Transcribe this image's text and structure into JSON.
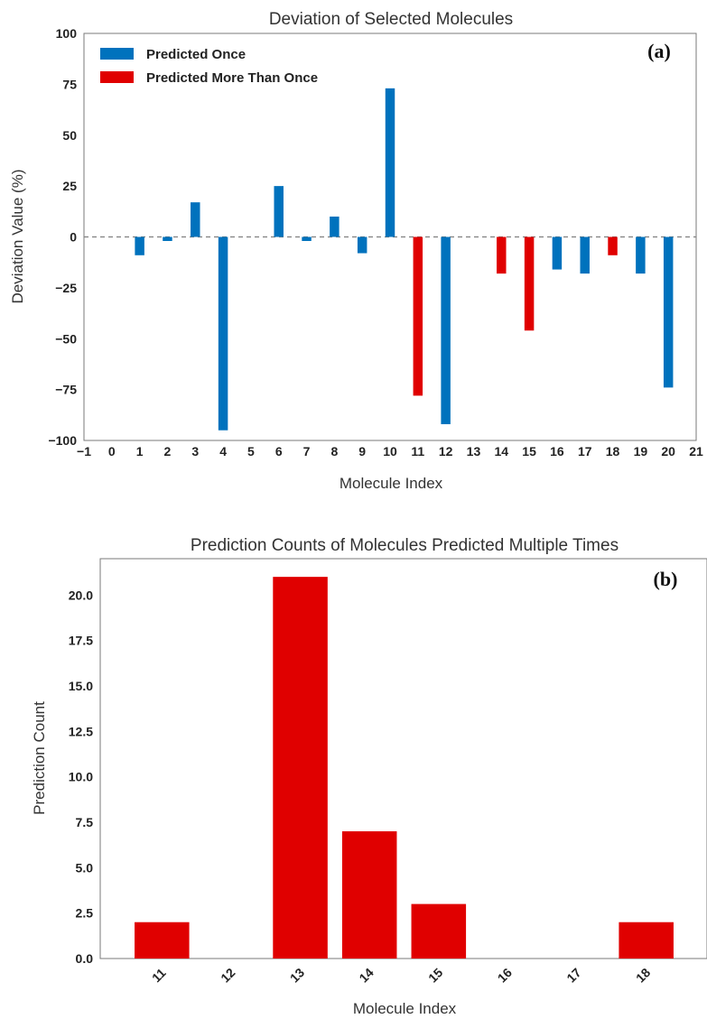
{
  "chart_data": [
    {
      "type": "bar",
      "panel_label": "(a)",
      "title": "Deviation of Selected Molecules",
      "xlabel": "Molecule Index",
      "ylabel": "Deviation Value (%)",
      "xlim": [
        -1,
        21
      ],
      "ylim": [
        -100,
        100
      ],
      "xticks": [
        "−1",
        "0",
        "1",
        "2",
        "3",
        "4",
        "5",
        "6",
        "7",
        "8",
        "9",
        "10",
        "11",
        "12",
        "13",
        "14",
        "15",
        "16",
        "17",
        "18",
        "19",
        "20",
        "21"
      ],
      "yticks": [
        "100",
        "75",
        "50",
        "25",
        "0",
        "−25",
        "−50",
        "−75",
        "−100"
      ],
      "reference_line": 0,
      "legend_position": "upper-left",
      "series": [
        {
          "name": "Predicted Once",
          "color": "#0072bd",
          "x": [
            1,
            2,
            3,
            4,
            6,
            7,
            8,
            9,
            10,
            12,
            16,
            17,
            19,
            20
          ],
          "values": [
            -9,
            -2,
            17,
            -95,
            25,
            -2,
            10,
            -8,
            73,
            -92,
            -16,
            -18,
            -18,
            -74
          ]
        },
        {
          "name": "Predicted More Than Once",
          "color": "#e00000",
          "x": [
            11,
            14,
            15,
            18
          ],
          "values": [
            -78,
            -18,
            -46,
            -9
          ]
        }
      ]
    },
    {
      "type": "bar",
      "panel_label": "(b)",
      "title": "Prediction Counts of Molecules Predicted Multiple Times",
      "xlabel": "Molecule Index",
      "ylabel": "Prediction Count",
      "categories": [
        "11",
        "12",
        "13",
        "14",
        "15",
        "16",
        "17",
        "18"
      ],
      "values": [
        2,
        0,
        21,
        7,
        3,
        0,
        0,
        2
      ],
      "ylim": [
        0,
        22
      ],
      "yticks": [
        "0.0",
        "2.5",
        "5.0",
        "7.5",
        "10.0",
        "12.5",
        "15.0",
        "17.5",
        "20.0"
      ],
      "color": "#e00000"
    }
  ]
}
